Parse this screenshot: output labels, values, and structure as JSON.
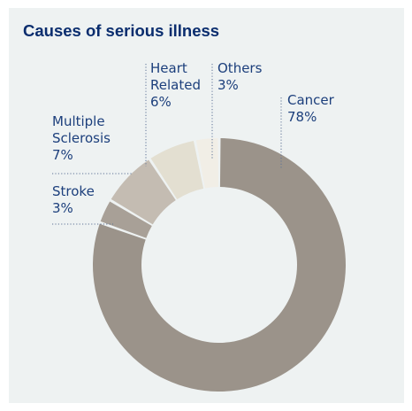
{
  "chart_data": {
    "type": "pie",
    "title": "Causes of serious illness",
    "slices": [
      {
        "label": "Cancer",
        "label_lines": [
          "Cancer"
        ],
        "value": 78,
        "value_label": "78%",
        "color": "#9b938a"
      },
      {
        "label": "Stroke",
        "label_lines": [
          "Stroke"
        ],
        "value": 3,
        "value_label": "3%",
        "color": "#a8a097"
      },
      {
        "label": "Multiple Sclerosis",
        "label_lines": [
          "Multiple",
          "Sclerosis"
        ],
        "value": 7,
        "value_label": "7%",
        "color": "#c4bcb2"
      },
      {
        "label": "Heart Related",
        "label_lines": [
          "Heart",
          "Related"
        ],
        "value": 6,
        "value_label": "6%",
        "color": "#e3dfd1"
      },
      {
        "label": "Others",
        "label_lines": [
          "Others"
        ],
        "value": 3,
        "value_label": "3%",
        "color": "#f1eee6"
      }
    ],
    "donut": true,
    "legend": "none"
  }
}
